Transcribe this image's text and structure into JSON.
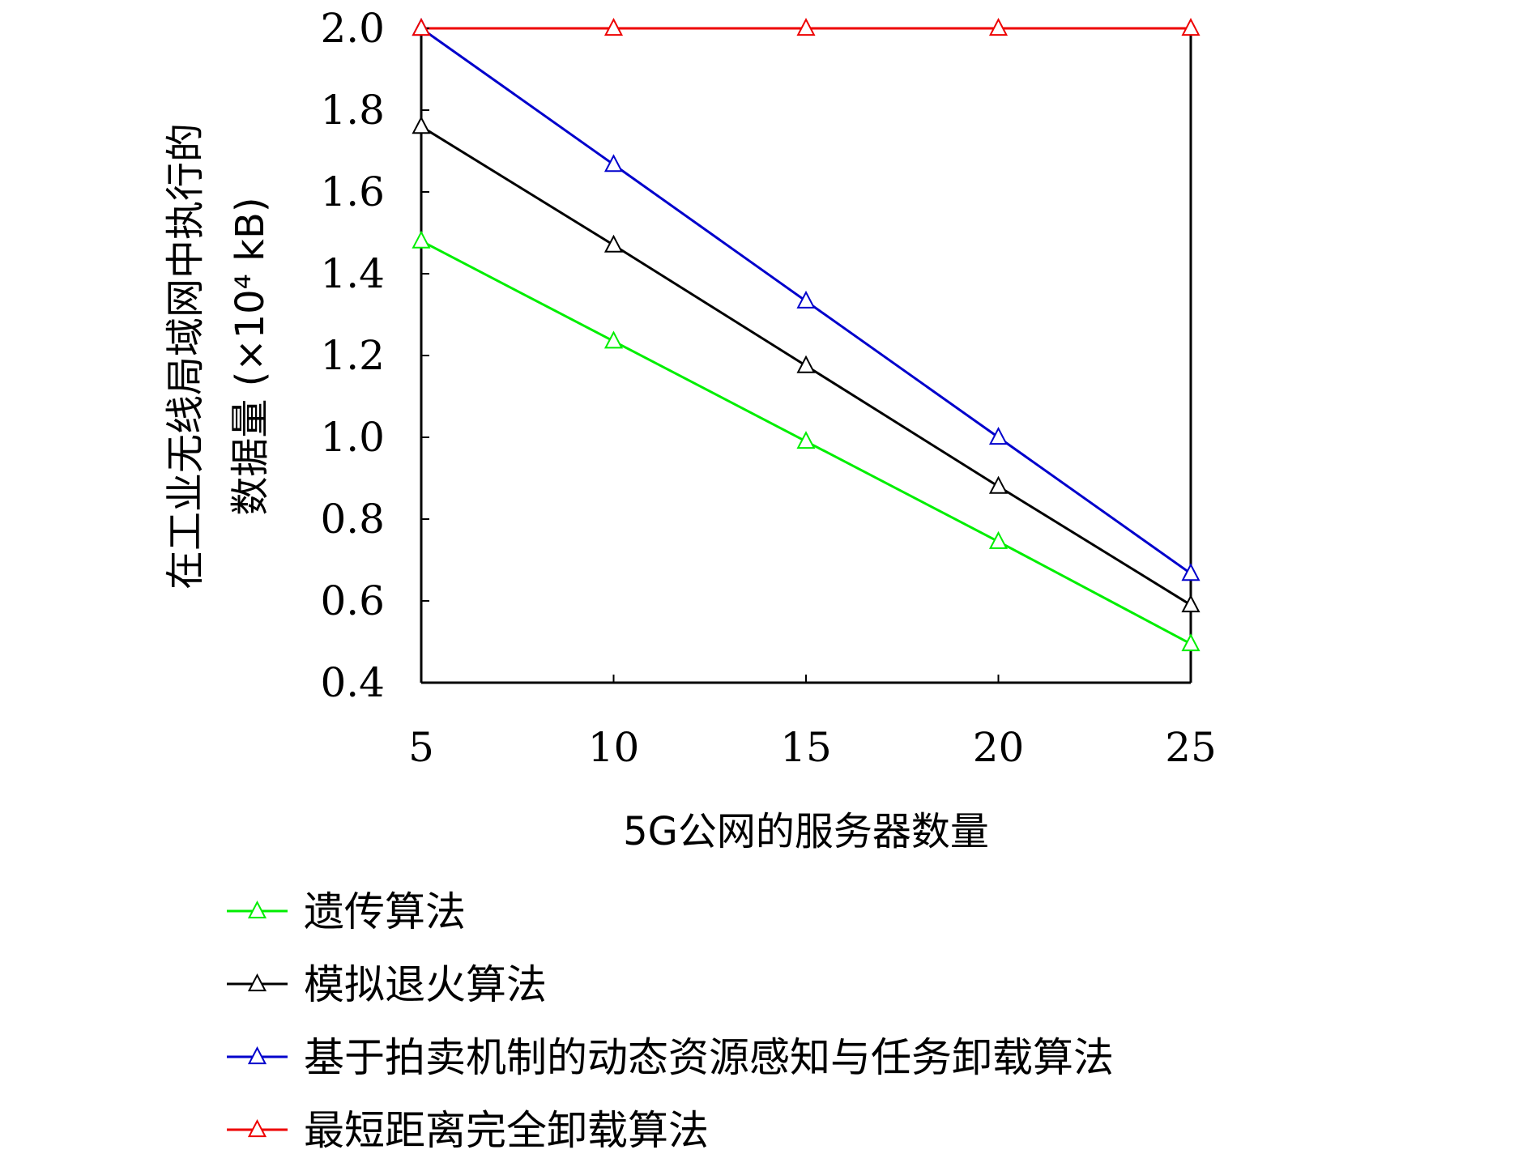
{
  "chart_data": {
    "type": "line",
    "title": "",
    "xlabel": "5G公网的服务器数量",
    "ylabel_line1": "在工业无线局域网中执行的",
    "ylabel_line2": "数据量 (×10⁴ kB)",
    "x": [
      5,
      10,
      15,
      20,
      25
    ],
    "xticks": [
      "5",
      "10",
      "15",
      "20",
      "25"
    ],
    "xlim": [
      5,
      25
    ],
    "yticks": [
      "0.4",
      "0.6",
      "0.8",
      "1.0",
      "1.2",
      "1.4",
      "1.6",
      "1.8",
      "2.0"
    ],
    "ylim": [
      0.4,
      2.0
    ],
    "grid": false,
    "legend_position": "bottom",
    "series": [
      {
        "name": "遗传算法",
        "color": "#00ee00",
        "marker": "triangle",
        "values": [
          1.48,
          1.235,
          0.99,
          0.745,
          0.495
        ]
      },
      {
        "name": "模拟退火算法",
        "color": "#000000",
        "marker": "triangle",
        "values": [
          1.76,
          1.47,
          1.175,
          0.88,
          0.59
        ]
      },
      {
        "name": "基于拍卖机制的动态资源感知与任务卸载算法",
        "color": "#0000cc",
        "marker": "triangle",
        "values": [
          2.0,
          1.667,
          1.333,
          1.0,
          0.667
        ]
      },
      {
        "name": "最短距离完全卸载算法",
        "color": "#ee0000",
        "marker": "triangle",
        "values": [
          2.0,
          2.0,
          2.0,
          2.0,
          2.0
        ]
      }
    ]
  }
}
